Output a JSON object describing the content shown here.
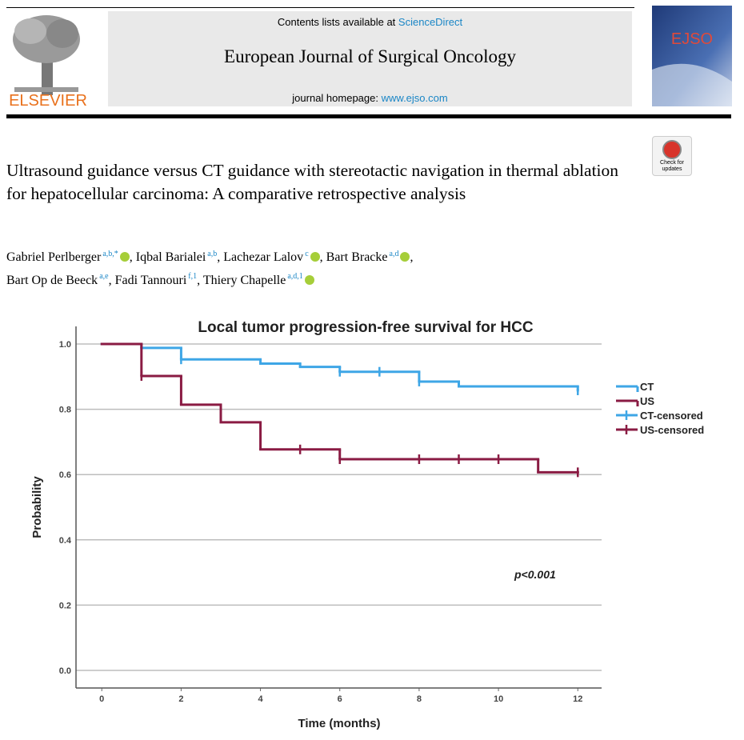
{
  "header": {
    "contents_prefix": "Contents lists available at",
    "contents_link": "ScienceDirect",
    "journal": "European Journal of Surgical Oncology",
    "homepage_prefix": "journal homepage:",
    "homepage_link": "www.ejso.com",
    "publisher": "ELSEVIER",
    "cover_title": "EJSO"
  },
  "badge": "Check for updates",
  "article": {
    "title": "Ultrasound guidance versus CT guidance with stereotactic navigation in thermal ablation for hepatocellular carcinoma: A comparative retrospective analysis",
    "authors": [
      {
        "name": "Gabriel Perlberger",
        "affiliations": "a,b,*",
        "orcid": true,
        "punct": ","
      },
      {
        "name": "Iqbal Barialei",
        "affiliations": "a,b",
        "orcid": false,
        "punct": ","
      },
      {
        "name": "Lachezar Lalov",
        "affiliations": "c",
        "orcid": true,
        "punct": ","
      },
      {
        "name": "Bart Bracke",
        "affiliations": "a,d",
        "orcid": true,
        "punct": ","
      },
      {
        "name": "Bart Op de Beeck",
        "affiliations": "a,e",
        "orcid": false,
        "punct": ","
      },
      {
        "name": "Fadi Tannouri",
        "affiliations": "f,1",
        "orcid": false,
        "punct": ","
      },
      {
        "name": "Thiery Chapelle",
        "affiliations": "a,d,1",
        "orcid": true
      }
    ]
  },
  "chart_data": {
    "type": "step",
    "title": "Local tumor progression-free survival for HCC",
    "x_label": "Time (months)",
    "y_label": "Probability",
    "annotation": "p<0.001",
    "xlim": [
      -0.65,
      12.6
    ],
    "ylim": [
      -0.054,
      1.054
    ],
    "xticks": [
      0,
      2,
      4,
      6,
      8,
      10,
      12
    ],
    "yticks": [
      {
        "value": 0,
        "label": "0.0"
      },
      {
        "value": 0.2,
        "label": "0.2"
      },
      {
        "value": 0.4,
        "label": "0.4"
      },
      {
        "value": 0.6,
        "label": "0.6"
      },
      {
        "value": 0.8,
        "label": "0.8"
      },
      {
        "value": 1,
        "label": "1.0"
      }
    ],
    "grid": true,
    "legend": "right",
    "series": [
      {
        "name": "CT",
        "color": "#3ea6e6",
        "marker": "step",
        "x": [
          0,
          1,
          2,
          4,
          5,
          6,
          8,
          9,
          12
        ],
        "values": [
          1.0,
          0.988,
          0.953,
          0.94,
          0.93,
          0.915,
          0.885,
          0.87,
          0.858
        ]
      },
      {
        "name": "US",
        "color": "#8a1b43",
        "marker": "step",
        "x": [
          0,
          1,
          2,
          3,
          4,
          6,
          11,
          12
        ],
        "values": [
          1.0,
          0.902,
          0.814,
          0.76,
          0.677,
          0.647,
          0.607,
          0.607
        ]
      },
      {
        "name": "CT-censored",
        "color": "#3ea6e6",
        "marker": "plus",
        "x": [
          2,
          6,
          7,
          8,
          12
        ],
        "values": [
          0.953,
          0.915,
          0.915,
          0.885,
          0.858
        ]
      },
      {
        "name": "US-censored",
        "color": "#8a1b43",
        "marker": "plus",
        "x": [
          1,
          5,
          6,
          8,
          9,
          10,
          12
        ],
        "values": [
          0.902,
          0.677,
          0.647,
          0.647,
          0.647,
          0.647,
          0.607
        ]
      }
    ]
  }
}
